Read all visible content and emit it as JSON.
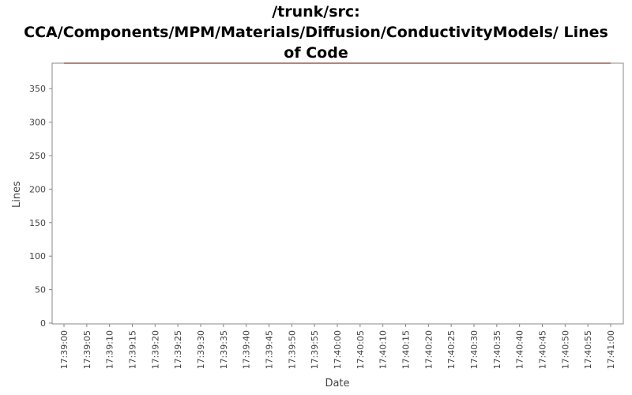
{
  "chart_data": {
    "type": "line",
    "title_lines": [
      "/trunk/src:",
      "CCA/Components/MPM/Materials/Diffusion/ConductivityModels/ Lines",
      "of Code"
    ],
    "xlabel": "Date",
    "ylabel": "Lines",
    "ylim": [
      0,
      388
    ],
    "y_ticks": [
      0,
      50,
      100,
      150,
      200,
      250,
      300,
      350
    ],
    "x_ticks": [
      "17:39:00",
      "17:39:05",
      "17:39:10",
      "17:39:15",
      "17:39:20",
      "17:39:25",
      "17:39:30",
      "17:39:35",
      "17:39:40",
      "17:39:45",
      "17:39:50",
      "17:39:55",
      "17:40:00",
      "17:40:05",
      "17:40:10",
      "17:40:15",
      "17:40:20",
      "17:40:25",
      "17:40:30",
      "17:40:35",
      "17:40:40",
      "17:40:45",
      "17:40:50",
      "17:40:55",
      "17:41:00"
    ],
    "series": [
      {
        "x": [
          "17:39:00",
          "17:41:00"
        ],
        "values": [
          388,
          388
        ]
      }
    ],
    "colors": {
      "line": "#8b3a2a",
      "axis": "#888888"
    },
    "grid": false,
    "legend": "none"
  }
}
